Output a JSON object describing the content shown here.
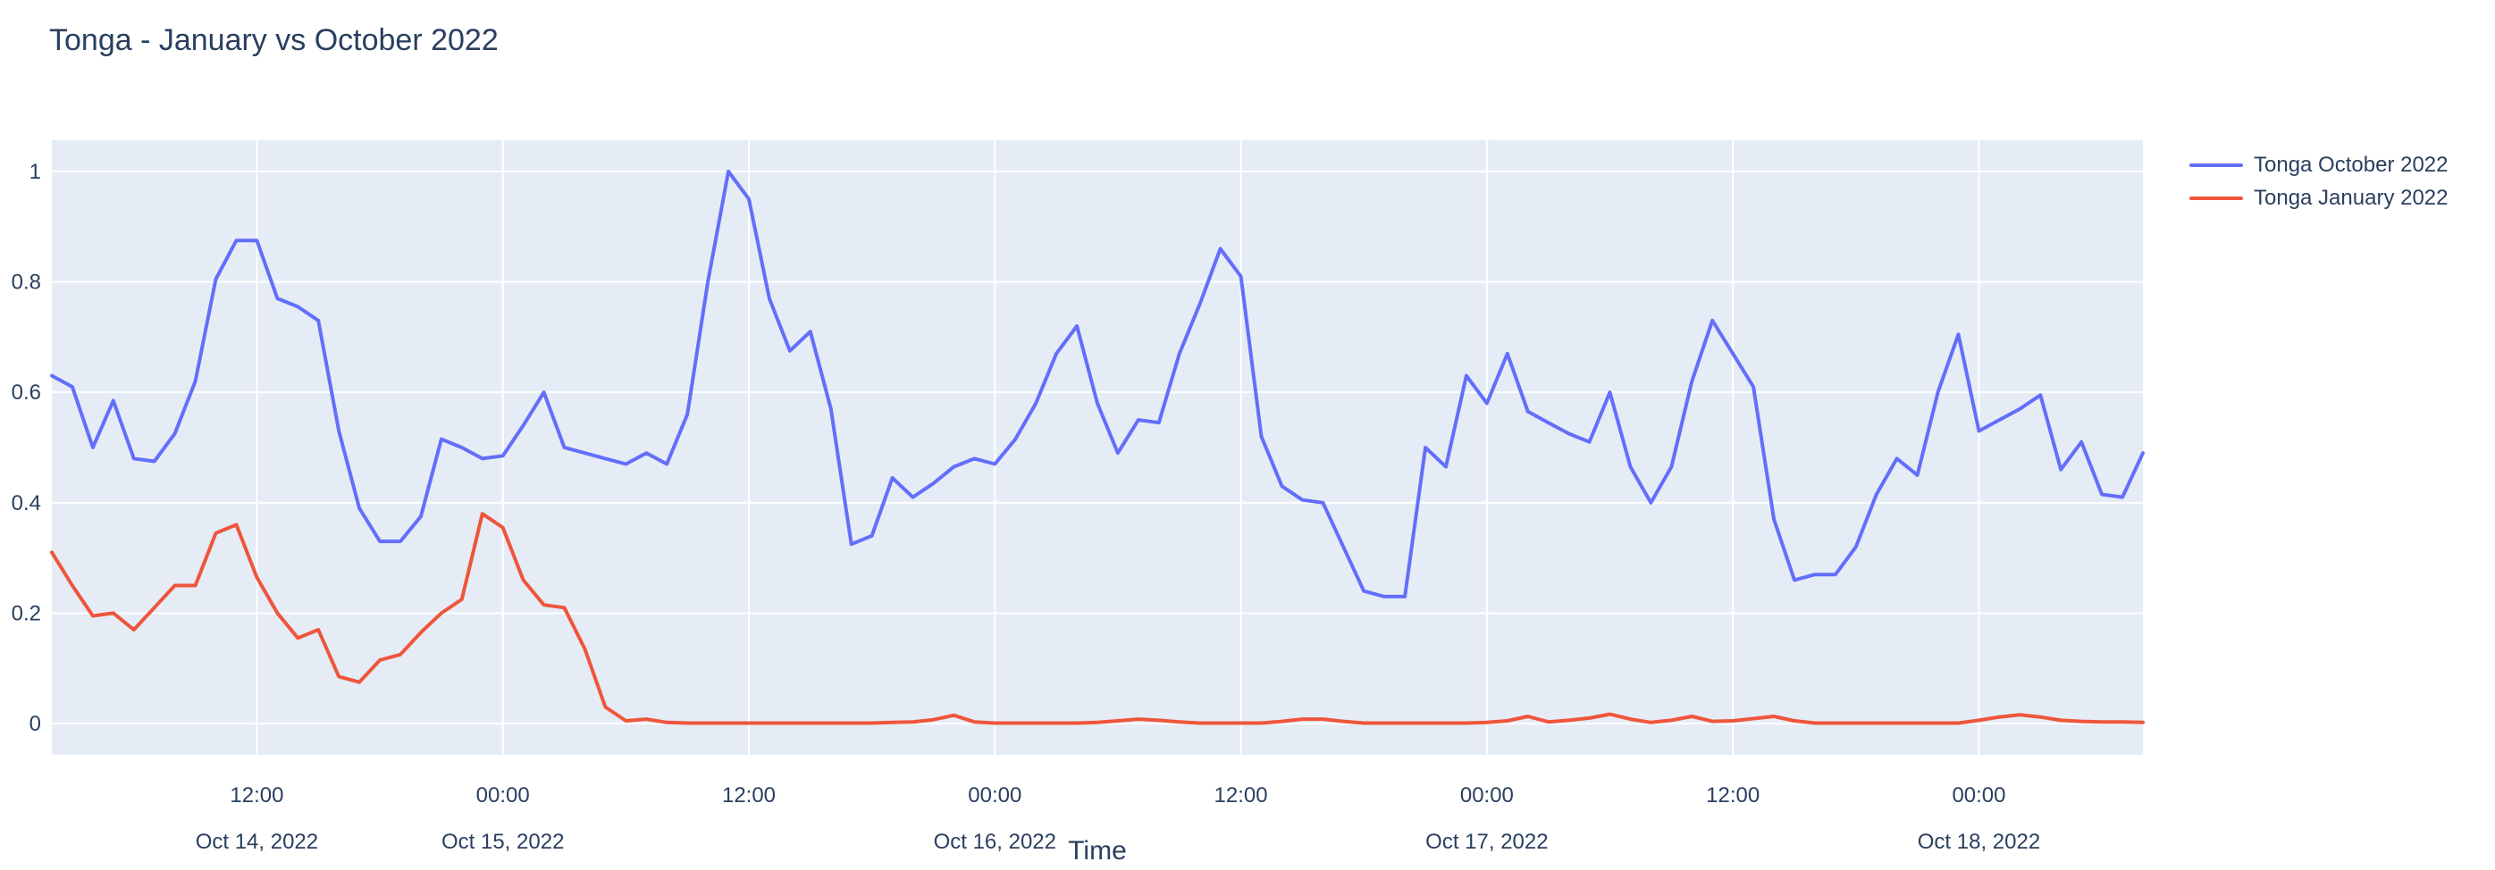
{
  "title": "Tonga - January vs October 2022",
  "colors": {
    "title_text": "#2a3f5f",
    "tick_text": "#2a3f5f",
    "plot_background": "#E5ECF6",
    "gridline": "#FFFFFF",
    "page_background": "#FFFFFF",
    "series_october": "#636EFA",
    "series_january": "#EF553B"
  },
  "legend": {
    "items": [
      {
        "label": "Tonga October 2022",
        "color": "#636EFA"
      },
      {
        "label": "Tonga January 2022",
        "color": "#EF553B"
      }
    ]
  },
  "chart_data": {
    "type": "line",
    "title": "Tonga - January vs October 2022",
    "xlabel": "Time",
    "ylabel": "",
    "x_start": "2022-10-14 02:00",
    "x_step_hours": 1,
    "n_points": 103,
    "ylim": [
      -0.0565,
      1.0565
    ],
    "y_ticks": [
      0,
      0.2,
      0.4,
      0.6,
      0.8,
      1
    ],
    "y_tick_labels": [
      "0",
      "0.2",
      "0.4",
      "0.6",
      "0.8",
      "1"
    ],
    "grid": true,
    "legend_position": "right",
    "x_ticks": [
      {
        "hour": 10,
        "time": "12:00",
        "date": "Oct 14, 2022"
      },
      {
        "hour": 22,
        "time": "00:00",
        "date": "Oct 15, 2022"
      },
      {
        "hour": 34,
        "time": "12:00",
        "date": ""
      },
      {
        "hour": 46,
        "time": "00:00",
        "date": "Oct 16, 2022"
      },
      {
        "hour": 58,
        "time": "12:00",
        "date": ""
      },
      {
        "hour": 70,
        "time": "00:00",
        "date": "Oct 17, 2022"
      },
      {
        "hour": 82,
        "time": "12:00",
        "date": ""
      },
      {
        "hour": 94,
        "time": "00:00",
        "date": "Oct 18, 2022"
      }
    ],
    "series": [
      {
        "name": "Tonga October 2022",
        "color": "#636EFA",
        "values": [
          0.63,
          0.61,
          0.5,
          0.585,
          0.48,
          0.475,
          0.525,
          0.62,
          0.805,
          0.875,
          0.875,
          0.77,
          0.755,
          0.73,
          0.53,
          0.39,
          0.33,
          0.33,
          0.375,
          0.515,
          0.5,
          0.48,
          0.485,
          0.54,
          0.6,
          0.5,
          0.49,
          0.48,
          0.47,
          0.49,
          0.47,
          0.56,
          0.8,
          1.0,
          0.95,
          0.77,
          0.675,
          0.71,
          0.57,
          0.325,
          0.34,
          0.445,
          0.41,
          0.435,
          0.465,
          0.48,
          0.47,
          0.515,
          0.58,
          0.67,
          0.72,
          0.58,
          0.49,
          0.55,
          0.545,
          0.67,
          0.76,
          0.86,
          0.81,
          0.52,
          0.43,
          0.405,
          0.4,
          0.32,
          0.24,
          0.23,
          0.23,
          0.5,
          0.465,
          0.63,
          0.58,
          0.67,
          0.565,
          0.545,
          0.525,
          0.51,
          0.6,
          0.465,
          0.4,
          0.465,
          0.62,
          0.73,
          0.67,
          0.61,
          0.37,
          0.26,
          0.27,
          0.27,
          0.32,
          0.415,
          0.48,
          0.45,
          0.6,
          0.705,
          0.53,
          0.55,
          0.57,
          0.595,
          0.46,
          0.51,
          0.415,
          0.41,
          0.49
        ]
      },
      {
        "name": "Tonga January 2022",
        "color": "#EF553B",
        "values": [
          0.31,
          0.25,
          0.195,
          0.2,
          0.17,
          0.21,
          0.25,
          0.25,
          0.345,
          0.36,
          0.265,
          0.2,
          0.155,
          0.17,
          0.085,
          0.075,
          0.115,
          0.125,
          0.165,
          0.2,
          0.225,
          0.38,
          0.355,
          0.26,
          0.215,
          0.21,
          0.135,
          0.03,
          0.005,
          0.008,
          0.002,
          0.001,
          0.001,
          0.001,
          0.001,
          0.001,
          0.001,
          0.001,
          0.001,
          0.001,
          0.001,
          0.002,
          0.003,
          0.007,
          0.015,
          0.003,
          0.001,
          0.001,
          0.001,
          0.001,
          0.001,
          0.002,
          0.005,
          0.008,
          0.006,
          0.003,
          0.001,
          0.001,
          0.001,
          0.001,
          0.004,
          0.008,
          0.008,
          0.004,
          0.001,
          0.001,
          0.001,
          0.001,
          0.001,
          0.001,
          0.002,
          0.005,
          0.013,
          0.003,
          0.006,
          0.01,
          0.017,
          0.008,
          0.002,
          0.006,
          0.013,
          0.004,
          0.005,
          0.009,
          0.013,
          0.005,
          0.001,
          0.001,
          0.001,
          0.001,
          0.001,
          0.001,
          0.001,
          0.001,
          0.006,
          0.012,
          0.016,
          0.012,
          0.006,
          0.004,
          0.003,
          0.003,
          0.002
        ]
      }
    ]
  }
}
